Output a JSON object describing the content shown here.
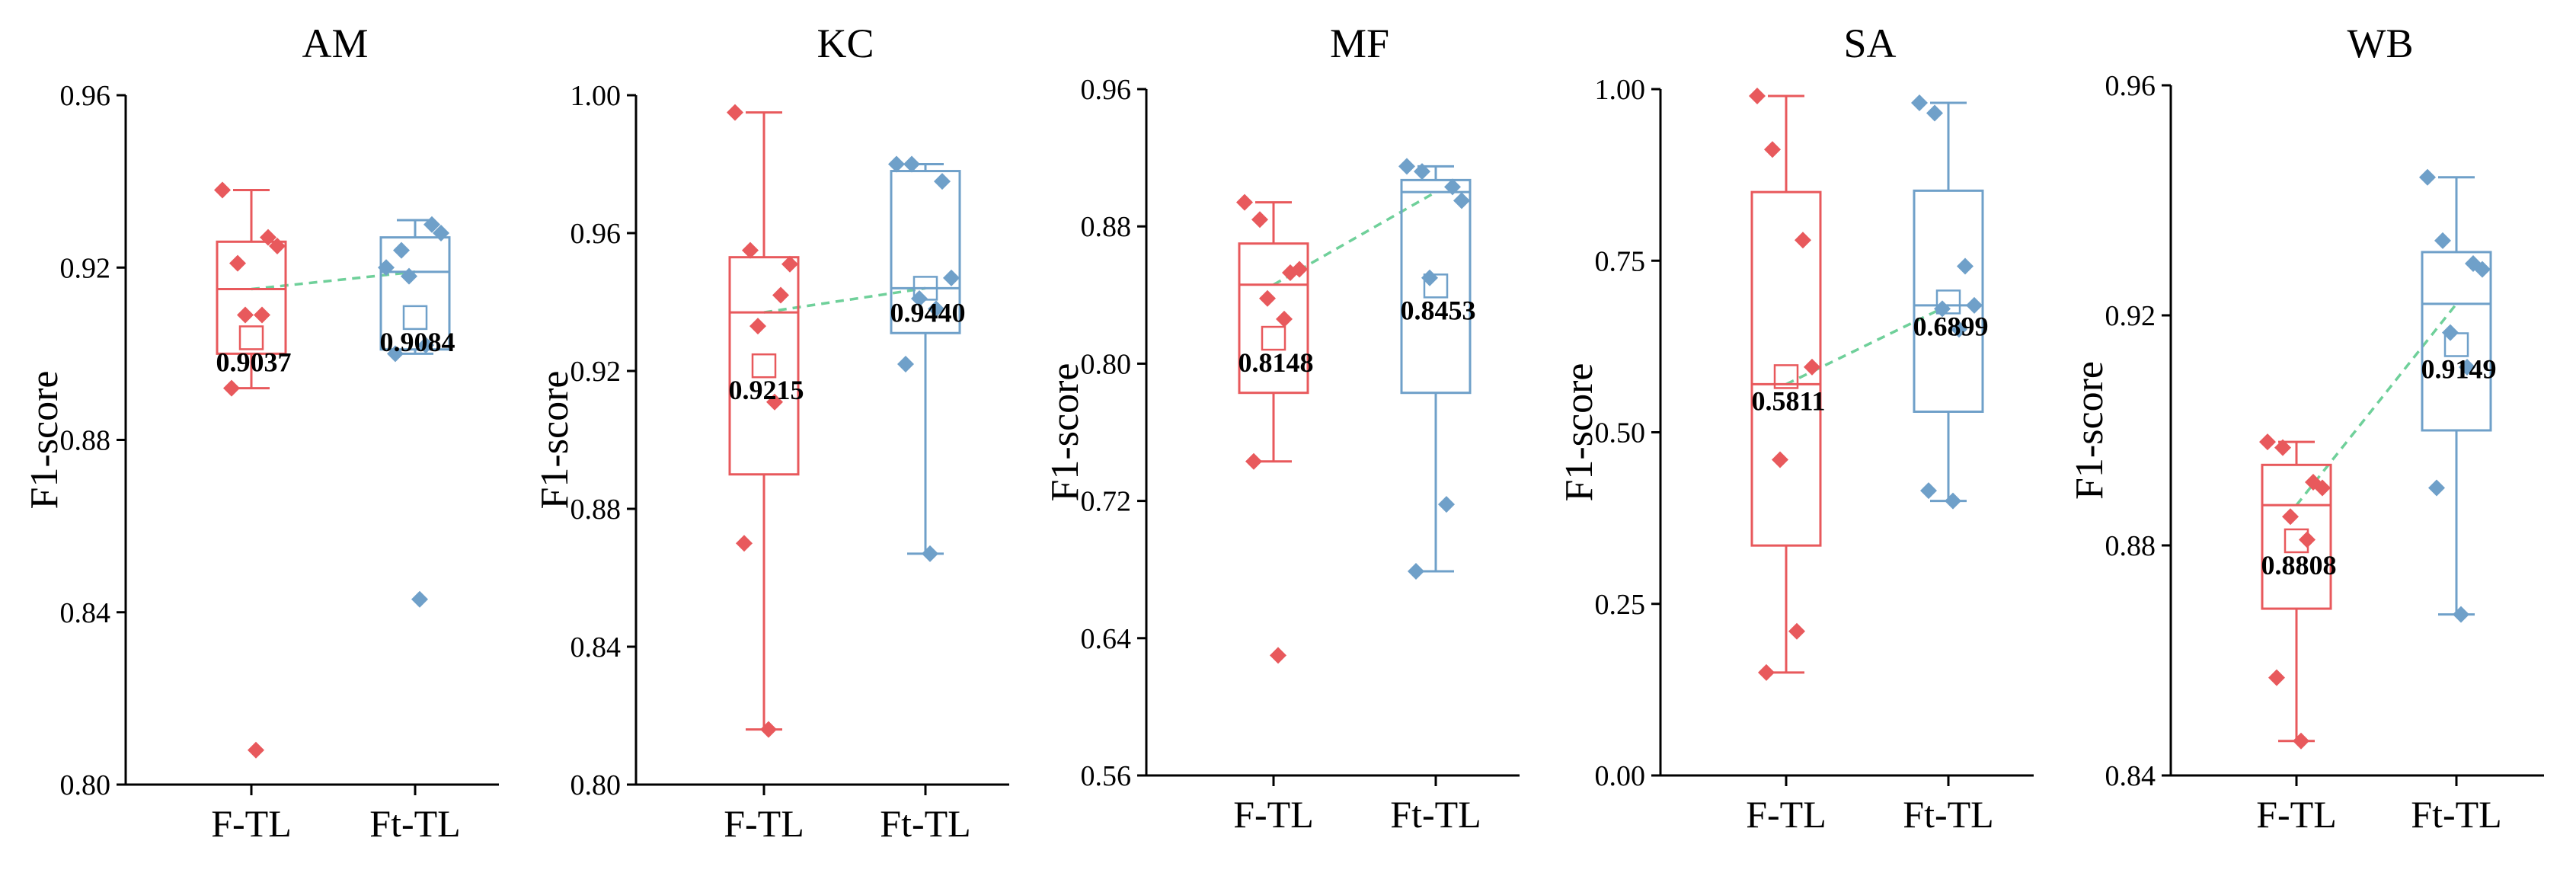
{
  "chart_data": [
    {
      "type": "box",
      "title": "AM",
      "ylabel": "F1-score",
      "categories": [
        "F-TL",
        "Ft-TL"
      ],
      "ylim": [
        0.8,
        0.96
      ],
      "yticks": [
        "0.80",
        "0.84",
        "0.88",
        "0.92",
        "0.96"
      ],
      "yticks_values": [
        0.8,
        0.84,
        0.88,
        0.92,
        0.96
      ],
      "series": [
        {
          "name": "F-TL",
          "color": "#e8595c",
          "q1": 0.9,
          "median": 0.915,
          "q3": 0.926,
          "whisker_low": 0.892,
          "whisker_high": 0.938,
          "mean": 0.9037,
          "mean_label": "0.9037",
          "points": [
            0.938,
            0.921,
            0.927,
            0.925,
            0.909,
            0.909,
            0.892,
            0.808
          ]
        },
        {
          "name": "Ft-TL",
          "color": "#6fa0c9",
          "q1": 0.901,
          "median": 0.919,
          "q3": 0.927,
          "whisker_low": 0.9,
          "whisker_high": 0.931,
          "mean": 0.9084,
          "mean_label": "0.9084",
          "points": [
            0.92,
            0.924,
            0.93,
            0.928,
            0.918,
            0.902,
            0.9,
            0.843
          ]
        }
      ]
    },
    {
      "type": "box",
      "title": "KC",
      "ylabel": "F1-score",
      "categories": [
        "F-TL",
        "Ft-TL"
      ],
      "ylim": [
        0.8,
        1.0
      ],
      "yticks": [
        "0.80",
        "0.84",
        "0.88",
        "0.92",
        "0.96",
        "1.00"
      ],
      "yticks_values": [
        0.8,
        0.84,
        0.88,
        0.92,
        0.96,
        1.0
      ],
      "series": [
        {
          "name": "F-TL",
          "color": "#e8595c",
          "q1": 0.89,
          "median": 0.937,
          "q3": 0.953,
          "whisker_low": 0.816,
          "whisker_high": 0.995,
          "mean": 0.9215,
          "mean_label": "0.9215",
          "points": [
            0.995,
            0.955,
            0.942,
            0.951,
            0.933,
            0.911,
            0.87,
            0.816
          ]
        },
        {
          "name": "Ft-TL",
          "color": "#6fa0c9",
          "q1": 0.931,
          "median": 0.944,
          "q3": 0.978,
          "whisker_low": 0.867,
          "whisker_high": 0.98,
          "mean": 0.944,
          "mean_label": "0.9440",
          "points": [
            0.98,
            0.98,
            0.975,
            0.947,
            0.941,
            0.938,
            0.922,
            0.867
          ]
        }
      ]
    },
    {
      "type": "box",
      "title": "MF",
      "ylabel": "F1-score",
      "categories": [
        "F-TL",
        "Ft-TL"
      ],
      "ylim": [
        0.56,
        0.96
      ],
      "yticks": [
        "0.56",
        "0.64",
        "0.72",
        "0.80",
        "0.88",
        "0.96"
      ],
      "yticks_values": [
        0.56,
        0.64,
        0.72,
        0.8,
        0.88,
        0.96
      ],
      "series": [
        {
          "name": "F-TL",
          "color": "#e8595c",
          "q1": 0.783,
          "median": 0.846,
          "q3": 0.87,
          "whisker_low": 0.743,
          "whisker_high": 0.894,
          "mean": 0.8148,
          "mean_label": "0.8148",
          "points": [
            0.894,
            0.884,
            0.853,
            0.855,
            0.838,
            0.826,
            0.743,
            0.63
          ]
        },
        {
          "name": "Ft-TL",
          "color": "#6fa0c9",
          "q1": 0.783,
          "median": 0.9,
          "q3": 0.907,
          "whisker_low": 0.679,
          "whisker_high": 0.915,
          "mean": 0.8453,
          "mean_label": "0.8453",
          "points": [
            0.915,
            0.912,
            0.903,
            0.895,
            0.85,
            0.718,
            0.679
          ]
        }
      ]
    },
    {
      "type": "box",
      "title": "SA",
      "ylabel": "F1-score",
      "categories": [
        "F-TL",
        "Ft-TL"
      ],
      "ylim": [
        0.0,
        1.0
      ],
      "yticks": [
        "0.00",
        "0.25",
        "0.50",
        "0.75",
        "1.00"
      ],
      "yticks_values": [
        0.0,
        0.25,
        0.5,
        0.75,
        1.0
      ],
      "series": [
        {
          "name": "F-TL",
          "color": "#e8595c",
          "q1": 0.335,
          "median": 0.57,
          "q3": 0.85,
          "whisker_low": 0.15,
          "whisker_high": 0.99,
          "mean": 0.5811,
          "mean_label": "0.5811",
          "points": [
            0.99,
            0.912,
            0.78,
            0.595,
            0.46,
            0.21,
            0.15
          ]
        },
        {
          "name": "Ft-TL",
          "color": "#6fa0c9",
          "q1": 0.53,
          "median": 0.685,
          "q3": 0.852,
          "whisker_low": 0.4,
          "whisker_high": 0.98,
          "mean": 0.6899,
          "mean_label": "0.6899",
          "points": [
            0.98,
            0.965,
            0.742,
            0.685,
            0.68,
            0.65,
            0.415,
            0.4
          ]
        }
      ]
    },
    {
      "type": "box",
      "title": "WB",
      "ylabel": "F1-score",
      "categories": [
        "F-TL",
        "Ft-TL"
      ],
      "ylim": [
        0.84,
        0.96
      ],
      "yticks": [
        "0.84",
        "0.88",
        "0.92",
        "0.96"
      ],
      "yticks_values": [
        0.84,
        0.88,
        0.92,
        0.96
      ],
      "series": [
        {
          "name": "F-TL",
          "color": "#e8595c",
          "q1": 0.869,
          "median": 0.887,
          "q3": 0.894,
          "whisker_low": 0.846,
          "whisker_high": 0.898,
          "mean": 0.8808,
          "mean_label": "0.8808",
          "points": [
            0.898,
            0.897,
            0.891,
            0.89,
            0.885,
            0.881,
            0.857,
            0.846
          ]
        },
        {
          "name": "Ft-TL",
          "color": "#6fa0c9",
          "q1": 0.9,
          "median": 0.922,
          "q3": 0.931,
          "whisker_low": 0.868,
          "whisker_high": 0.944,
          "mean": 0.9149,
          "mean_label": "0.9149",
          "points": [
            0.944,
            0.933,
            0.929,
            0.928,
            0.917,
            0.911,
            0.89,
            0.868
          ]
        }
      ]
    }
  ],
  "trend_color": "#6fd09a"
}
